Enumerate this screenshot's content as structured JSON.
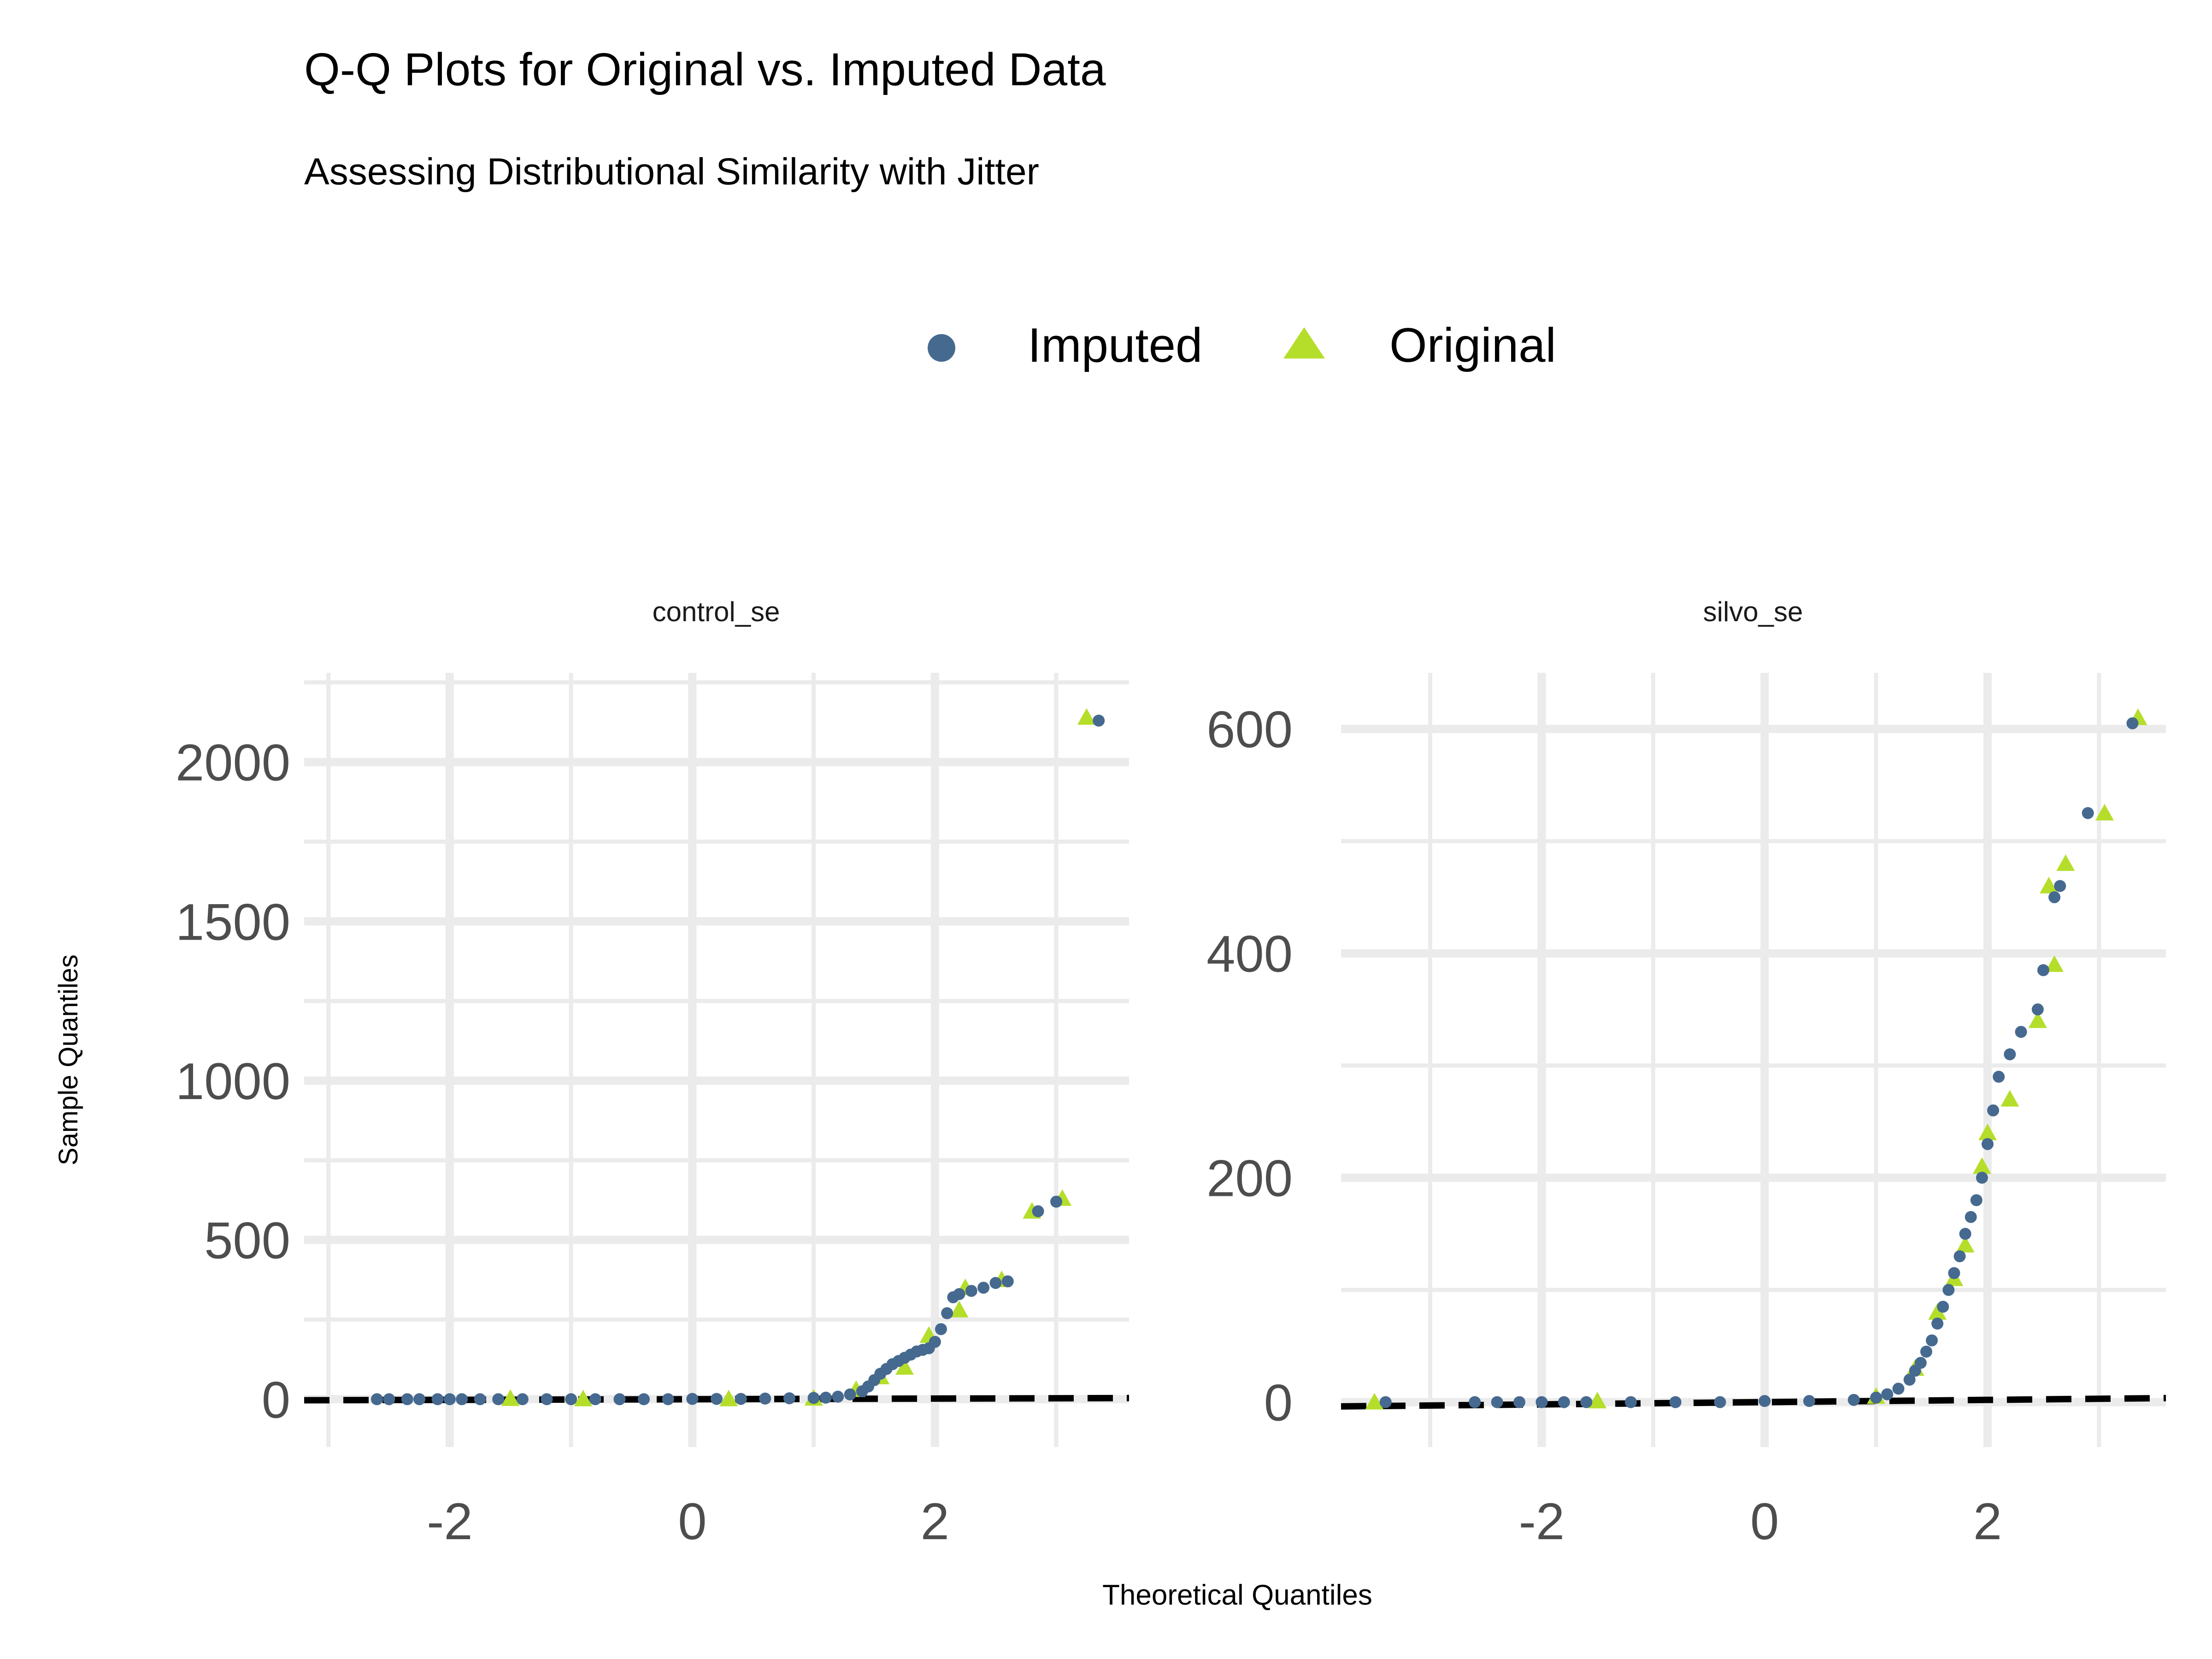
{
  "title": "Q-Q Plots for Original vs. Imputed Data",
  "subtitle": "Assessing Distributional Similarity with Jitter",
  "xlabel": "Theoretical Quantiles",
  "ylabel": "Sample Quantiles",
  "legend": {
    "placement": "top",
    "items": [
      {
        "name": "Imputed",
        "color": "#46698f",
        "shape": "circle"
      },
      {
        "name": "Original",
        "color": "#b5de2b",
        "shape": "triangle"
      }
    ]
  },
  "colors": {
    "imputed": "#46698f",
    "original": "#b5de2b",
    "grid": "#ebebeb",
    "reference_line": "#000000"
  },
  "chart_data": [
    {
      "type": "scatter",
      "panel": "control_se",
      "xlim": [
        -3.2,
        3.6
      ],
      "ylim": [
        -150,
        2280
      ],
      "x_ticks": [
        -2,
        0,
        2
      ],
      "y_ticks": [
        0,
        500,
        1000,
        1500,
        2000
      ],
      "x_tick_labels": [
        "-2",
        "0",
        "2"
      ],
      "y_tick_labels": [
        "0",
        "500",
        "1000",
        "1500",
        "2000"
      ],
      "reference_line": {
        "intercept": 0,
        "slope": 1,
        "style": "dashed"
      },
      "grid": true,
      "series": [
        {
          "name": "Imputed",
          "points": [
            [
              -2.6,
              0
            ],
            [
              -2.5,
              0
            ],
            [
              -2.35,
              0
            ],
            [
              -2.25,
              0
            ],
            [
              -2.1,
              0
            ],
            [
              -2.0,
              0
            ],
            [
              -1.9,
              0
            ],
            [
              -1.75,
              0
            ],
            [
              -1.6,
              0
            ],
            [
              -1.4,
              0
            ],
            [
              -1.2,
              0
            ],
            [
              -1.0,
              0
            ],
            [
              -0.8,
              0
            ],
            [
              -0.6,
              0
            ],
            [
              -0.4,
              0
            ],
            [
              -0.2,
              0
            ],
            [
              0.0,
              1
            ],
            [
              0.2,
              1
            ],
            [
              0.4,
              1
            ],
            [
              0.6,
              2
            ],
            [
              0.8,
              3
            ],
            [
              1.0,
              4
            ],
            [
              1.1,
              5
            ],
            [
              1.2,
              8
            ],
            [
              1.3,
              15
            ],
            [
              1.4,
              25
            ],
            [
              1.45,
              40
            ],
            [
              1.5,
              60
            ],
            [
              1.55,
              80
            ],
            [
              1.6,
              95
            ],
            [
              1.65,
              110
            ],
            [
              1.7,
              120
            ],
            [
              1.75,
              130
            ],
            [
              1.8,
              140
            ],
            [
              1.85,
              150
            ],
            [
              1.9,
              155
            ],
            [
              1.95,
              160
            ],
            [
              2.0,
              180
            ],
            [
              2.05,
              220
            ],
            [
              2.1,
              270
            ],
            [
              2.15,
              320
            ],
            [
              2.2,
              330
            ],
            [
              2.3,
              340
            ],
            [
              2.4,
              350
            ],
            [
              2.5,
              365
            ],
            [
              2.6,
              370
            ],
            [
              2.85,
              590
            ],
            [
              3.0,
              620
            ],
            [
              3.35,
              2130
            ]
          ]
        },
        {
          "name": "Original",
          "points": [
            [
              -1.5,
              2
            ],
            [
              -0.9,
              1
            ],
            [
              0.3,
              1
            ],
            [
              1.0,
              3
            ],
            [
              1.35,
              30
            ],
            [
              1.55,
              70
            ],
            [
              1.75,
              100
            ],
            [
              1.95,
              200
            ],
            [
              2.2,
              280
            ],
            [
              2.25,
              350
            ],
            [
              2.55,
              375
            ],
            [
              2.8,
              590
            ],
            [
              3.05,
              630
            ],
            [
              3.25,
              2140
            ]
          ]
        }
      ]
    },
    {
      "type": "scatter",
      "panel": "silvo_se",
      "xlim": [
        -3.8,
        3.6
      ],
      "ylim": [
        -40,
        650
      ],
      "x_ticks": [
        -2,
        0,
        2
      ],
      "y_ticks": [
        0,
        200,
        400,
        600
      ],
      "x_tick_labels": [
        "-2",
        "0",
        "2"
      ],
      "y_tick_labels": [
        "0",
        "200",
        "400",
        "600"
      ],
      "reference_line": {
        "intercept": 0,
        "slope": 1,
        "style": "dashed"
      },
      "grid": true,
      "series": [
        {
          "name": "Imputed",
          "points": [
            [
              -3.4,
              0
            ],
            [
              -2.6,
              0
            ],
            [
              -2.4,
              0
            ],
            [
              -2.2,
              0
            ],
            [
              -2.0,
              0
            ],
            [
              -1.8,
              0
            ],
            [
              -1.6,
              0
            ],
            [
              -1.2,
              0
            ],
            [
              -0.8,
              0
            ],
            [
              -0.4,
              0
            ],
            [
              0.0,
              1
            ],
            [
              0.4,
              1
            ],
            [
              0.8,
              2
            ],
            [
              1.0,
              4
            ],
            [
              1.1,
              7
            ],
            [
              1.2,
              12
            ],
            [
              1.3,
              20
            ],
            [
              1.35,
              28
            ],
            [
              1.4,
              35
            ],
            [
              1.45,
              45
            ],
            [
              1.5,
              55
            ],
            [
              1.55,
              70
            ],
            [
              1.6,
              85
            ],
            [
              1.65,
              100
            ],
            [
              1.7,
              115
            ],
            [
              1.75,
              130
            ],
            [
              1.8,
              150
            ],
            [
              1.85,
              165
            ],
            [
              1.9,
              180
            ],
            [
              1.95,
              200
            ],
            [
              2.0,
              230
            ],
            [
              2.05,
              260
            ],
            [
              2.1,
              290
            ],
            [
              2.2,
              310
            ],
            [
              2.3,
              330
            ],
            [
              2.45,
              350
            ],
            [
              2.5,
              385
            ],
            [
              2.6,
              450
            ],
            [
              2.65,
              460
            ],
            [
              2.9,
              525
            ],
            [
              3.3,
              605
            ]
          ]
        },
        {
          "name": "Original",
          "points": [
            [
              -3.5,
              0
            ],
            [
              -1.5,
              1
            ],
            [
              1.0,
              5
            ],
            [
              1.35,
              30
            ],
            [
              1.55,
              80
            ],
            [
              1.7,
              110
            ],
            [
              1.8,
              140
            ],
            [
              1.95,
              210
            ],
            [
              2.0,
              240
            ],
            [
              2.2,
              270
            ],
            [
              2.45,
              340
            ],
            [
              2.6,
              390
            ],
            [
              2.55,
              460
            ],
            [
              2.7,
              480
            ],
            [
              3.05,
              525
            ],
            [
              3.35,
              610
            ]
          ]
        }
      ]
    }
  ]
}
